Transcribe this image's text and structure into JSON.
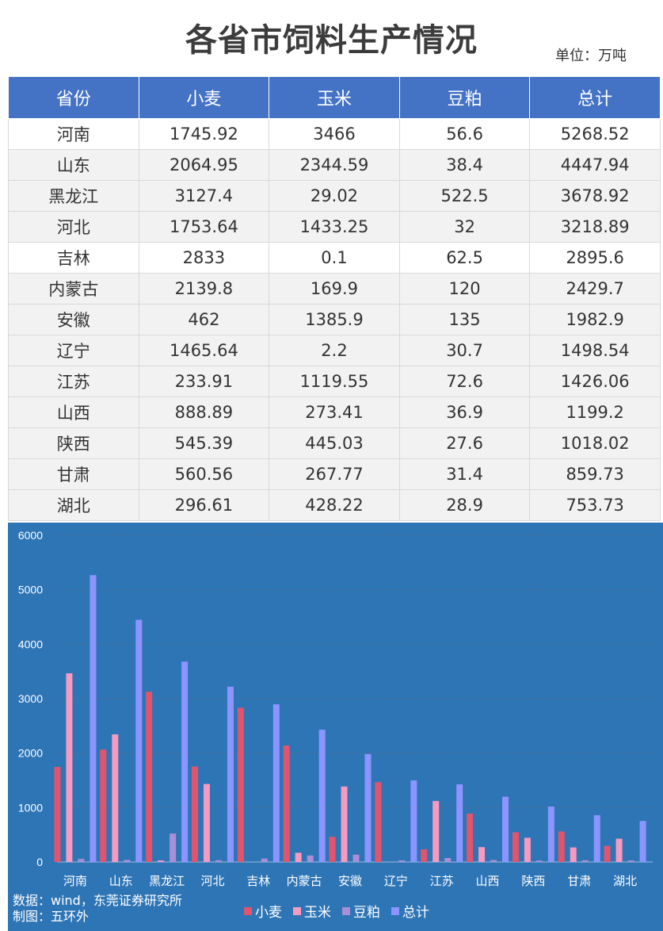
{
  "title": "各省市饲料生产情况",
  "unit": "单位：万吨",
  "table": {
    "headers": [
      "省份",
      "小麦",
      "玉米",
      "豆粕",
      "总计"
    ],
    "rows": [
      [
        "河南",
        "1745.92",
        "3466",
        "56.6",
        "5268.52"
      ],
      [
        "山东",
        "2064.95",
        "2344.59",
        "38.4",
        "4447.94"
      ],
      [
        "黑龙江",
        "3127.4",
        "29.02",
        "522.5",
        "3678.92"
      ],
      [
        "河北",
        "1753.64",
        "1433.25",
        "32",
        "3218.89"
      ],
      [
        "吉林",
        "2833",
        "0.1",
        "62.5",
        "2895.6"
      ],
      [
        "内蒙古",
        "2139.8",
        "169.9",
        "120",
        "2429.7"
      ],
      [
        "安徽",
        "462",
        "1385.9",
        "135",
        "1982.9"
      ],
      [
        "辽宁",
        "1465.64",
        "2.2",
        "30.7",
        "1498.54"
      ],
      [
        "江苏",
        "233.91",
        "1119.55",
        "72.6",
        "1426.06"
      ],
      [
        "山西",
        "888.89",
        "273.41",
        "36.9",
        "1199.2"
      ],
      [
        "陕西",
        "545.39",
        "445.03",
        "27.6",
        "1018.02"
      ],
      [
        "甘肃",
        "560.56",
        "267.77",
        "31.4",
        "859.73"
      ],
      [
        "湖北",
        "296.61",
        "428.22",
        "28.9",
        "753.73"
      ]
    ]
  },
  "source": {
    "line1": "数据：wind，东莞证券研究所",
    "line2": "制图：五环外"
  },
  "colors": {
    "header_bg": "#4472c4",
    "chart_bg": "#2e75b6"
  },
  "chart_data": {
    "type": "bar",
    "categories": [
      "河南",
      "山东",
      "黑龙江",
      "河北",
      "吉林",
      "内蒙古",
      "安徽",
      "辽宁",
      "江苏",
      "山西",
      "陕西",
      "甘肃",
      "湖北"
    ],
    "series": [
      {
        "name": "小麦",
        "color": "#e0546e",
        "values": [
          1745.92,
          2064.95,
          3127.4,
          1753.64,
          2833,
          2139.8,
          462,
          1465.64,
          233.91,
          888.89,
          545.39,
          560.56,
          296.61
        ]
      },
      {
        "name": "玉米",
        "color": "#f79ac0",
        "values": [
          3466,
          2344.59,
          29.02,
          1433.25,
          0.1,
          169.9,
          1385.9,
          2.2,
          1119.55,
          273.41,
          445.03,
          267.77,
          428.22
        ]
      },
      {
        "name": "豆粕",
        "color": "#a88fd6",
        "values": [
          56.6,
          38.4,
          522.5,
          32,
          62.5,
          120,
          135,
          30.7,
          72.6,
          36.9,
          27.6,
          31.4,
          28.9
        ]
      },
      {
        "name": "总计",
        "color": "#8c95ff",
        "values": [
          5268.52,
          4447.94,
          3678.92,
          3218.89,
          2895.6,
          2429.7,
          1982.9,
          1498.54,
          1426.06,
          1199.2,
          1018.02,
          859.73,
          753.73
        ]
      }
    ],
    "yticks": [
      "0",
      "1000",
      "2000",
      "3000",
      "4000",
      "5000",
      "6000"
    ],
    "ylim": [
      0,
      6000
    ],
    "grid": true,
    "legend": "bottom"
  }
}
